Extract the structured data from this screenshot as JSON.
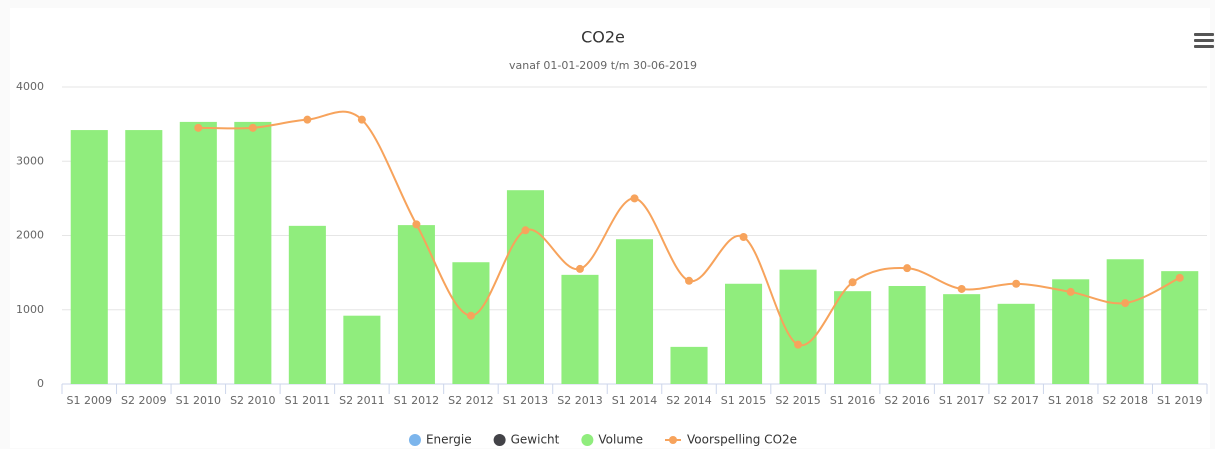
{
  "chart_data": {
    "type": "bar",
    "title": "CO2e",
    "subtitle": "vanaf 01-01-2009 t/m 30-06-2019",
    "categories": [
      "S1 2009",
      "S2 2009",
      "S1 2010",
      "S2 2010",
      "S1 2011",
      "S2 2011",
      "S1 2012",
      "S2 2012",
      "S1 2013",
      "S2 2013",
      "S1 2014",
      "S2 2014",
      "S1 2015",
      "S2 2015",
      "S1 2016",
      "S2 2016",
      "S1 2017",
      "S2 2017",
      "S1 2018",
      "S2 2018",
      "S1 2019"
    ],
    "series": [
      {
        "name": "Energie",
        "color": "#7cb5ec",
        "type": "bar",
        "values": [
          null,
          null,
          null,
          null,
          null,
          null,
          null,
          null,
          null,
          null,
          null,
          null,
          null,
          null,
          null,
          null,
          null,
          null,
          null,
          null,
          null
        ]
      },
      {
        "name": "Gewicht",
        "color": "#434348",
        "type": "bar",
        "values": [
          null,
          null,
          null,
          null,
          null,
          null,
          null,
          null,
          null,
          null,
          null,
          null,
          null,
          null,
          null,
          null,
          null,
          null,
          null,
          null,
          null
        ]
      },
      {
        "name": "Volume",
        "color": "#90ed7d",
        "type": "bar",
        "values": [
          3420,
          3420,
          3530,
          3530,
          2130,
          920,
          2140,
          1640,
          2610,
          1470,
          1950,
          500,
          1350,
          1540,
          1250,
          1320,
          1210,
          1080,
          1410,
          1680,
          1520
        ]
      },
      {
        "name": "Voorspelling CO2e",
        "color": "#f7a35c",
        "type": "line",
        "values": [
          null,
          null,
          3450,
          3450,
          3560,
          3560,
          2150,
          920,
          2070,
          1550,
          2500,
          1390,
          1980,
          530,
          1370,
          1560,
          1280,
          1350,
          1240,
          1090,
          1430
        ]
      }
    ],
    "ylim": [
      0,
      4000
    ],
    "yticks": [
      0,
      1000,
      2000,
      3000,
      4000
    ],
    "grid": true,
    "legend": "bottom"
  }
}
